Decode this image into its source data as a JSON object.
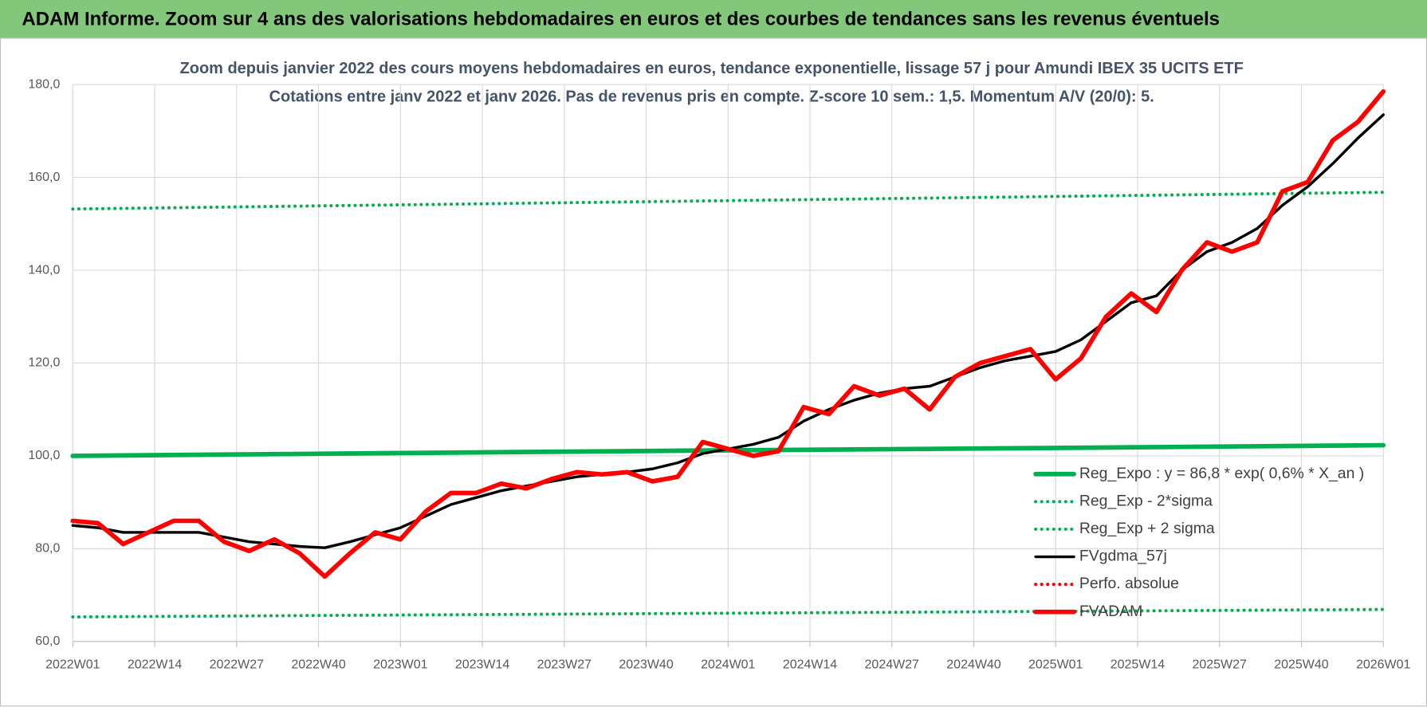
{
  "chart_data": {
    "type": "line",
    "title": "ADAM Informe. Zoom sur 4 ans des valorisations hebdomadaires en euros et des courbes de tendances sans les revenus éventuels",
    "subtitle": [
      "Zoom depuis janvier 2022 des cours moyens hebdomadaires en euros, tendance exponentielle, lissage 57 j pour Amundi IBEX 35 UCITS ETF",
      "Cotations entre janv 2022 et janv 2026. Pas de revenus pris en compte. Z-score 10 sem.: 1,5. Momentum A/V (20/0): 5."
    ],
    "xlim": [
      "2022W01",
      "2026W01"
    ],
    "xticks": [
      "2022W01",
      "2022W14",
      "2022W27",
      "2022W40",
      "2023W01",
      "2023W14",
      "2023W27",
      "2023W40",
      "2024W01",
      "2024W14",
      "2024W27",
      "2024W40",
      "2025W01",
      "2025W14",
      "2025W27",
      "2025W40",
      "2026W01"
    ],
    "ylim": [
      60,
      180
    ],
    "yticks": [
      {
        "value": 60,
        "label": "60,0"
      },
      {
        "value": 80,
        "label": "80,0"
      },
      {
        "value": 100,
        "label": "100,0"
      },
      {
        "value": 120,
        "label": "120,0"
      },
      {
        "value": 140,
        "label": "140,0"
      },
      {
        "value": 160,
        "label": "160,0"
      },
      {
        "value": 180,
        "label": "180,0"
      }
    ],
    "grid": true,
    "legend": "bottom-right",
    "series": [
      {
        "name": "Reg_Expo : y = 86,8 * exp( 0,6% *  X_an )",
        "color": "#00b050",
        "dotted": false,
        "x": [
          "2022W01",
          "2023W01",
          "2024W01",
          "2025W01",
          "2026W01"
        ],
        "values": [
          100.0,
          100.6,
          101.2,
          101.7,
          102.3
        ]
      },
      {
        "name": "Reg_Exp - 2*sigma",
        "color": "#00b050",
        "dotted": true,
        "x": [
          "2022W01",
          "2023W01",
          "2024W01",
          "2025W01",
          "2026W01"
        ],
        "values": [
          65.3,
          65.7,
          66.1,
          66.5,
          66.9
        ]
      },
      {
        "name": "Reg_Exp + 2 sigma",
        "color": "#00b050",
        "dotted": true,
        "x": [
          "2022W01",
          "2023W01",
          "2024W01",
          "2025W01",
          "2026W01"
        ],
        "values": [
          153.2,
          154.1,
          155.0,
          155.9,
          156.8
        ]
      },
      {
        "name": "FVgdma_57j",
        "color": "#000000",
        "dotted": false,
        "x": [
          "2022W01",
          "2022W05",
          "2022W09",
          "2022W13",
          "2022W17",
          "2022W21",
          "2022W25",
          "2022W29",
          "2022W33",
          "2022W37",
          "2022W41",
          "2022W45",
          "2022W49",
          "2023W01",
          "2023W05",
          "2023W09",
          "2023W13",
          "2023W17",
          "2023W21",
          "2023W25",
          "2023W29",
          "2023W33",
          "2023W37",
          "2023W41",
          "2023W45",
          "2023W49",
          "2024W01",
          "2024W05",
          "2024W09",
          "2024W13",
          "2024W17",
          "2024W21",
          "2024W25",
          "2024W29",
          "2024W33",
          "2024W37",
          "2024W41",
          "2024W45",
          "2024W49",
          "2025W01",
          "2025W05",
          "2025W09",
          "2025W13",
          "2025W17",
          "2025W21",
          "2025W25",
          "2025W29",
          "2025W33",
          "2025W37",
          "2025W41",
          "2025W45",
          "2025W49",
          "2026W01"
        ],
        "values": [
          85,
          84.5,
          83.5,
          83.5,
          83.5,
          83.5,
          82.5,
          81.5,
          81,
          80.5,
          80.2,
          81.5,
          83,
          84.5,
          87,
          89.5,
          91,
          92.5,
          93.5,
          94.5,
          95.5,
          96,
          96.5,
          97.2,
          98.5,
          100.5,
          101.5,
          102.5,
          104,
          107.5,
          110,
          112,
          113.5,
          114.5,
          115,
          117,
          119,
          120.5,
          121.5,
          122.5,
          125,
          129,
          133,
          134.5,
          140,
          144,
          146,
          149,
          154,
          158,
          163,
          168.5,
          173.5
        ]
      },
      {
        "name": "Perfo. absolue",
        "color": "#ff0000",
        "dotted": true,
        "x": [],
        "values": []
      },
      {
        "name": "FVADAM",
        "color": "#ff0000",
        "dotted": false,
        "x": [
          "2022W01",
          "2022W05",
          "2022W09",
          "2022W13",
          "2022W17",
          "2022W21",
          "2022W25",
          "2022W29",
          "2022W33",
          "2022W37",
          "2022W41",
          "2022W45",
          "2022W49",
          "2023W01",
          "2023W05",
          "2023W09",
          "2023W13",
          "2023W17",
          "2023W21",
          "2023W25",
          "2023W29",
          "2023W33",
          "2023W37",
          "2023W41",
          "2023W45",
          "2023W49",
          "2024W01",
          "2024W05",
          "2024W09",
          "2024W13",
          "2024W17",
          "2024W21",
          "2024W25",
          "2024W29",
          "2024W33",
          "2024W37",
          "2024W41",
          "2024W45",
          "2024W49",
          "2025W01",
          "2025W05",
          "2025W09",
          "2025W13",
          "2025W17",
          "2025W21",
          "2025W25",
          "2025W29",
          "2025W33",
          "2025W37",
          "2025W41",
          "2025W45",
          "2025W49",
          "2026W01"
        ],
        "values": [
          86,
          85.5,
          81,
          83.5,
          86,
          86,
          81.5,
          79.5,
          82,
          79,
          74,
          79,
          83.5,
          82,
          88,
          92,
          92,
          94,
          93,
          95,
          96.5,
          96,
          96.5,
          94.5,
          95.5,
          103,
          101.5,
          100,
          101,
          110.5,
          109,
          115,
          113,
          114.5,
          110,
          117,
          120,
          121.5,
          123,
          116.5,
          121,
          130,
          135,
          131,
          140,
          146,
          144,
          146,
          157,
          159,
          168,
          172,
          178.5
        ]
      }
    ]
  }
}
